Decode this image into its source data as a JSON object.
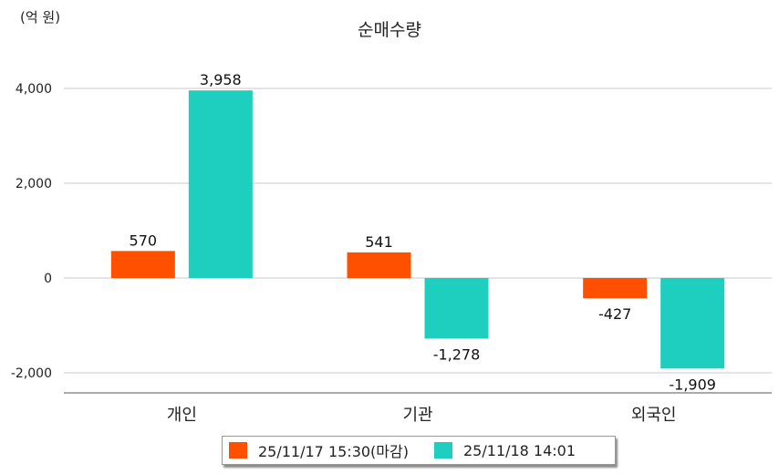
{
  "chart_data": {
    "type": "bar",
    "title": "순매수량",
    "unit_label": "(억 원)",
    "categories": [
      "개인",
      "기관",
      "외국인"
    ],
    "series": [
      {
        "name": "25/11/17 15:30(마감)",
        "color": "#FF5000",
        "values": [
          570,
          541,
          -427
        ],
        "labels": [
          "570",
          "541",
          "-427"
        ]
      },
      {
        "name": "25/11/18 14:01",
        "color": "#1ECEBE",
        "values": [
          3958,
          -1278,
          -1909
        ],
        "labels": [
          "3,958",
          "-1,278",
          "-1,909"
        ]
      }
    ],
    "yticks": [
      4000,
      2000,
      0,
      -2000
    ],
    "ytick_labels": [
      "4,000",
      "2,000",
      "0",
      "-2,000"
    ],
    "ylim": [
      -2400,
      4600
    ],
    "grid": true,
    "legend_position": "bottom"
  }
}
